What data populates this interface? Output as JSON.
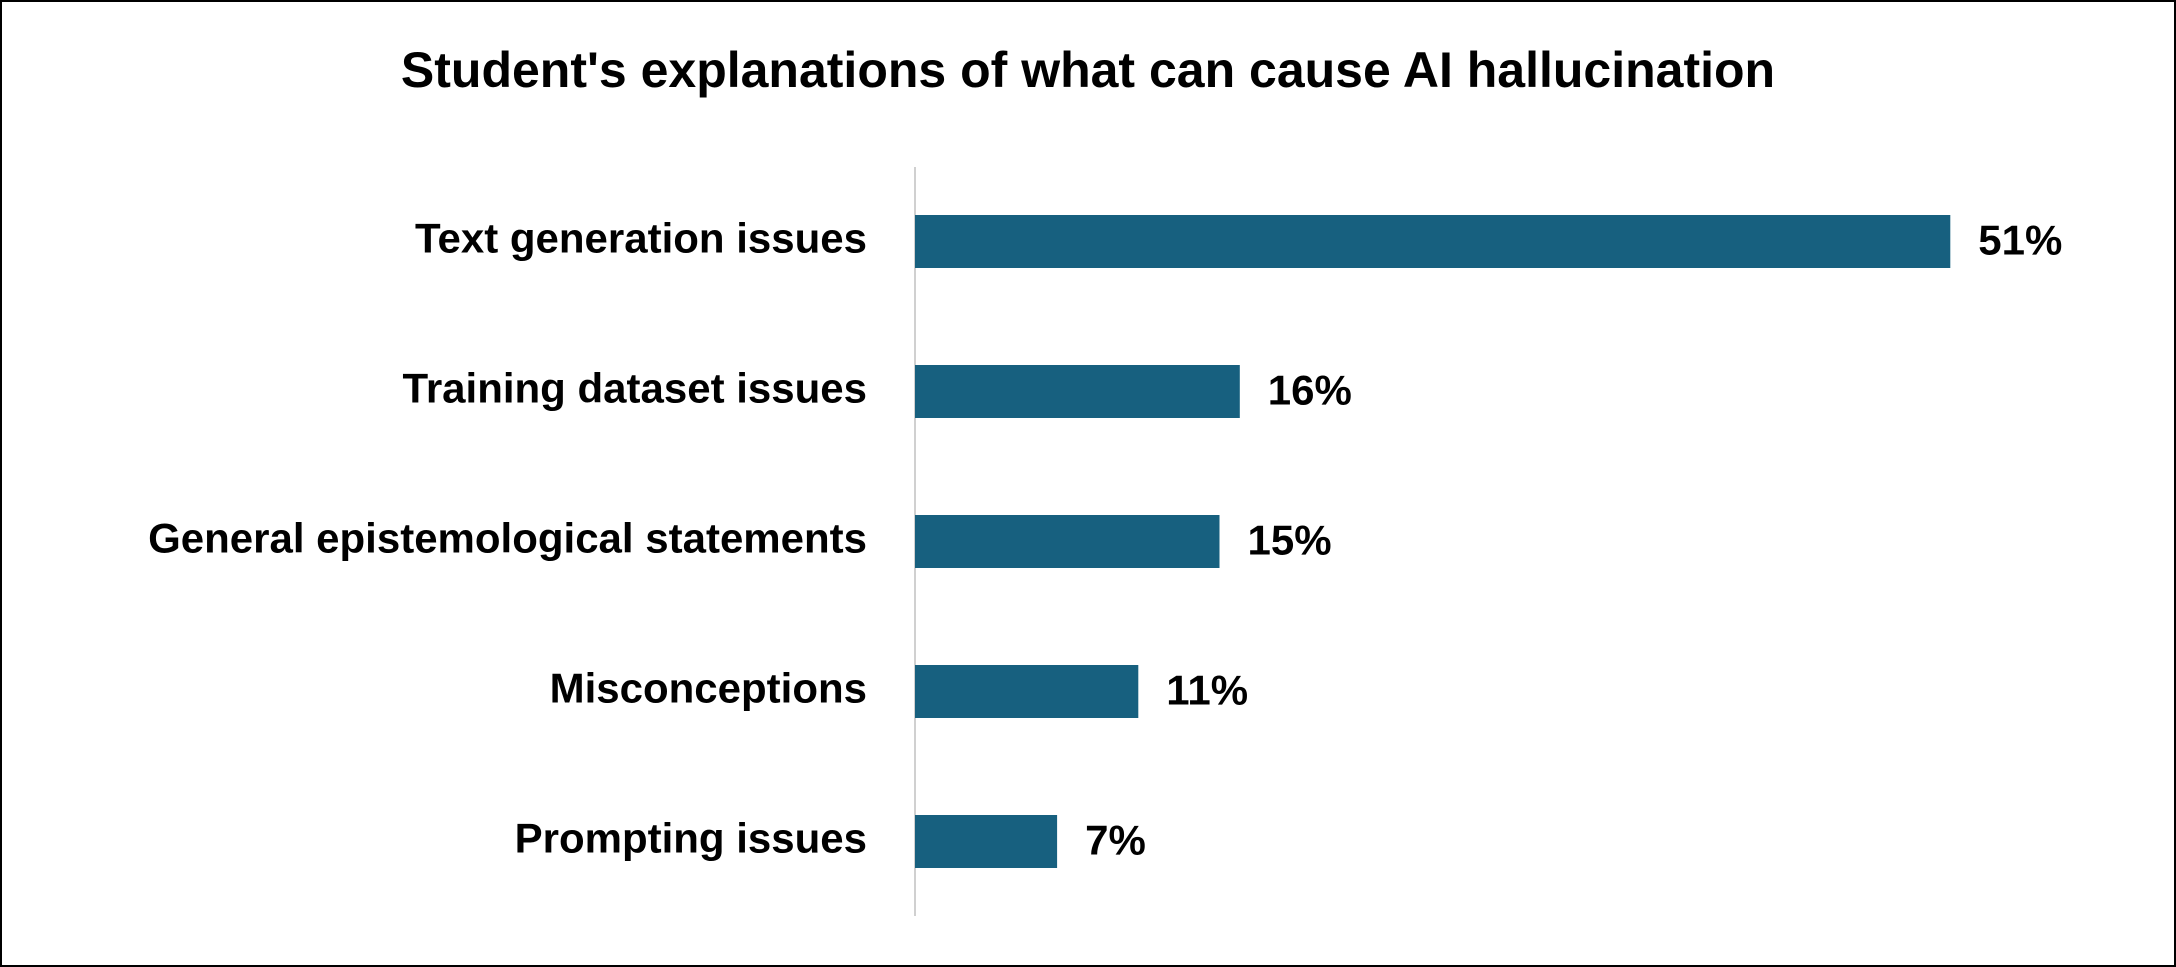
{
  "chart_data": {
    "type": "bar",
    "orientation": "horizontal",
    "title": "Student's explanations of what can cause AI hallucination",
    "categories": [
      "Text generation issues",
      "Training dataset issues",
      "General epistemological statements",
      "Misconceptions",
      "Prompting issues"
    ],
    "values": [
      51,
      16,
      15,
      11,
      7
    ],
    "value_labels": [
      "51%",
      "16%",
      "15%",
      "11%",
      "7%"
    ],
    "color": "#17607f"
  }
}
